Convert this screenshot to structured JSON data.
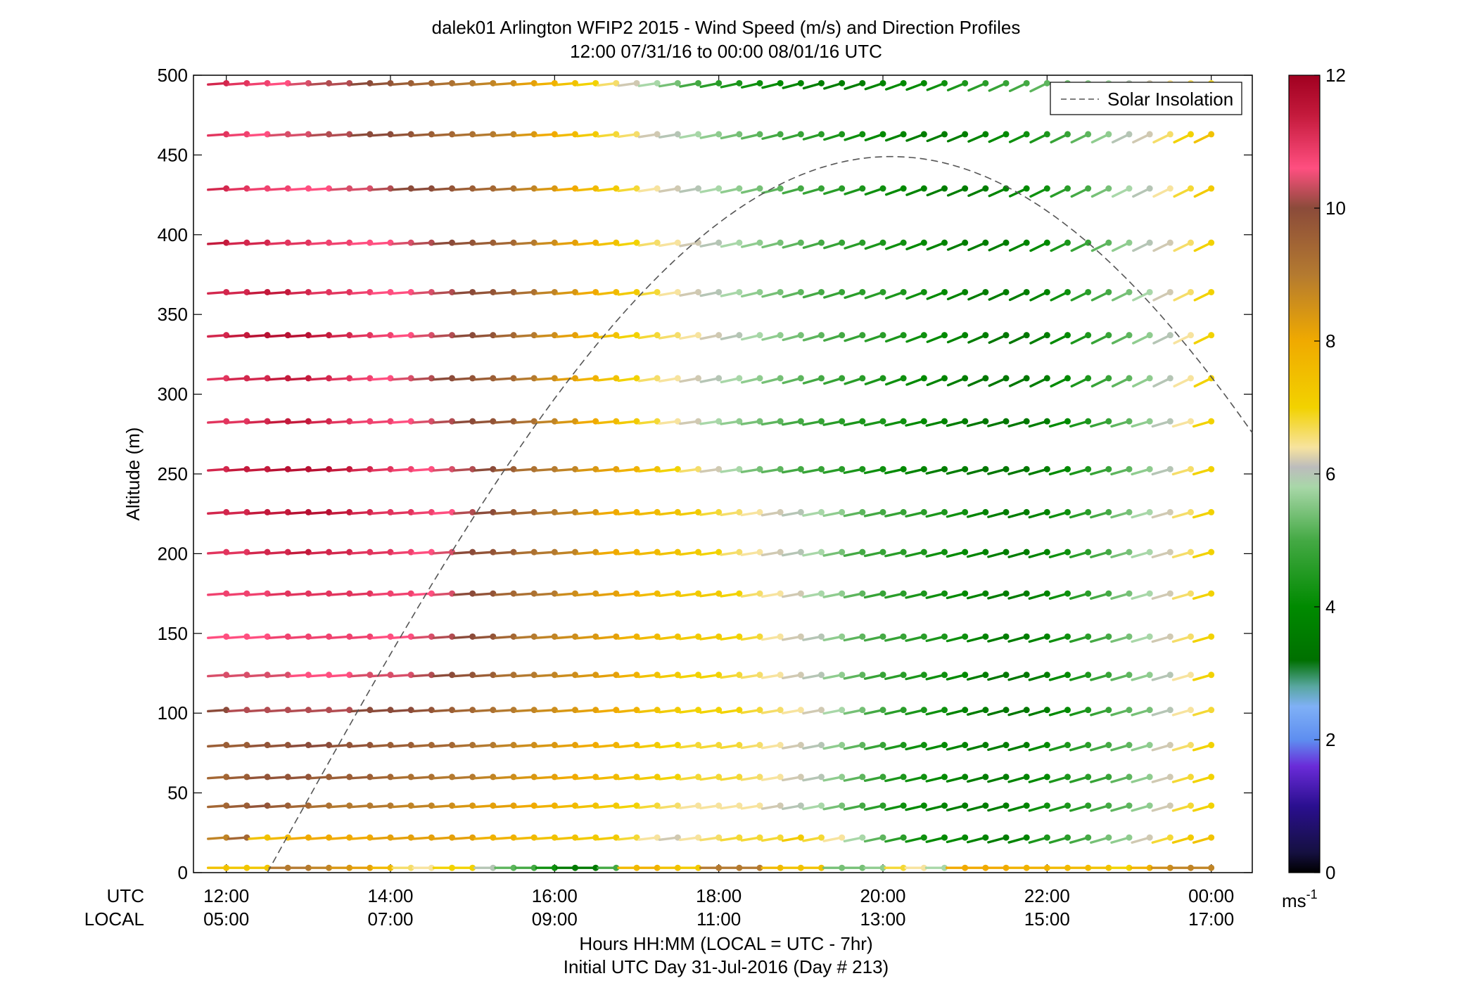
{
  "chart_data": {
    "type": "wind-barb-profile",
    "title": "dalek01 Arlington WFIP2 2015 - Wind Speed (m/s) and Direction Profiles",
    "subtitle": "12:00 07/31/16 to 00:00 08/01/16  UTC",
    "ylabel": "Altitude (m)",
    "xlabel": "Hours HH:MM  (LOCAL = UTC - 7hr)",
    "xlabel2": "Initial UTC Day 31-Jul-2016 (Day # 213)",
    "row_labels": {
      "utc": "UTC",
      "local": "LOCAL"
    },
    "xlim_hours": [
      11.6,
      24.5
    ],
    "ylim": [
      0,
      500
    ],
    "x_ticks": [
      {
        "hour": 12,
        "utc": "12:00",
        "local": "05:00"
      },
      {
        "hour": 14,
        "utc": "14:00",
        "local": "07:00"
      },
      {
        "hour": 16,
        "utc": "16:00",
        "local": "09:00"
      },
      {
        "hour": 18,
        "utc": "18:00",
        "local": "11:00"
      },
      {
        "hour": 20,
        "utc": "20:00",
        "local": "13:00"
      },
      {
        "hour": 22,
        "utc": "22:00",
        "local": "15:00"
      },
      {
        "hour": 24,
        "utc": "00:00",
        "local": "17:00"
      }
    ],
    "y_ticks": [
      0,
      50,
      100,
      150,
      200,
      250,
      300,
      350,
      400,
      450,
      500
    ],
    "altitudes": [
      3,
      22,
      42,
      60,
      80,
      102,
      124,
      148,
      175,
      201,
      226,
      253,
      283,
      310,
      337,
      364,
      395,
      429,
      463,
      495
    ],
    "time_start_hour": 12,
    "time_step_hours": 0.25,
    "speed_profiles": [
      [
        7.4,
        7.3,
        7.3,
        9,
        9,
        8.8,
        8.4,
        8.2,
        7.6,
        6.6,
        6.4,
        7,
        7,
        6,
        5.2,
        5,
        4.2,
        3.5,
        3.5,
        5,
        7.6,
        7.8,
        7.4,
        7.2,
        9,
        9,
        9,
        7.6,
        7.4,
        7.4,
        5.4,
        5.4,
        5.6,
        6.8,
        6.4,
        5.8,
        8,
        8,
        8,
        7.8,
        7.8,
        7.6,
        7.6,
        7.4,
        7,
        7.8,
        8.6,
        8.8,
        8.8
      ],
      [
        8.8,
        9.4,
        7.4,
        7.6,
        8,
        8,
        8,
        8,
        8.2,
        8.2,
        8.2,
        8.2,
        8.2,
        7.8,
        7.8,
        7.6,
        7.4,
        7.4,
        7.2,
        7.2,
        6.8,
        6.4,
        6.2,
        6.4,
        6.6,
        6.8,
        6.8,
        6.8,
        7.2,
        6.8,
        6.4,
        5.8,
        5.2,
        4.6,
        4.2,
        4,
        4,
        3.8,
        3.6,
        3.8,
        4.4,
        4.6,
        5,
        5.4,
        5.6,
        6.2,
        6.8,
        7.2,
        7.4
      ],
      [
        9.4,
        9.6,
        9.8,
        9.6,
        9.4,
        9.2,
        9,
        9,
        9,
        8.8,
        8.8,
        8.6,
        8.4,
        8.2,
        8.2,
        8,
        7.8,
        7.6,
        7.4,
        7.2,
        7,
        6.8,
        6.6,
        6.4,
        6.4,
        6.4,
        6.4,
        6.2,
        6,
        5.8,
        5.4,
        5,
        4.6,
        4.2,
        4,
        3.8,
        3.6,
        3.6,
        3.6,
        3.8,
        4.2,
        4.4,
        4.6,
        5,
        5.2,
        5.6,
        6.2,
        6.8,
        7
      ],
      [
        9.4,
        9.6,
        9.8,
        9.8,
        9.8,
        9.6,
        9.6,
        9.6,
        9.4,
        9.2,
        9.2,
        9,
        9,
        8.8,
        8.6,
        8.4,
        8.2,
        8,
        7.8,
        7.6,
        7.4,
        7.2,
        7,
        6.8,
        6.8,
        6.8,
        6.6,
        6.4,
        6.2,
        6,
        5.6,
        5.2,
        4.8,
        4.4,
        4.2,
        4,
        3.8,
        3.6,
        3.6,
        3.8,
        4,
        4.4,
        4.6,
        4.8,
        5.2,
        5.6,
        6.2,
        6.8,
        7
      ],
      [
        9.6,
        9.6,
        9.8,
        9.8,
        10,
        10,
        9.8,
        9.8,
        9.6,
        9.6,
        9.4,
        9.4,
        9.2,
        9,
        8.8,
        8.6,
        8.4,
        8.2,
        8,
        7.8,
        7.6,
        7.2,
        7,
        6.8,
        6.8,
        6.8,
        6.6,
        6.4,
        6.2,
        6,
        5.6,
        5.2,
        4.8,
        4.4,
        4.2,
        4,
        3.8,
        3.6,
        3.6,
        3.6,
        4,
        4.4,
        4.6,
        5,
        5.2,
        5.6,
        6.2,
        6.6,
        7
      ],
      [
        10,
        10.2,
        10.2,
        10.2,
        10.2,
        10.2,
        10.2,
        10,
        10,
        10,
        9.8,
        9.6,
        9.4,
        9.2,
        9,
        8.8,
        8.6,
        8.4,
        8.2,
        8,
        7.8,
        7.4,
        7.2,
        7,
        7,
        7,
        6.8,
        6.6,
        6.4,
        6.2,
        5.8,
        5.4,
        5,
        4.6,
        4.4,
        4.2,
        3.8,
        3.6,
        3.4,
        3.4,
        3.6,
        4,
        4.4,
        4.8,
        5.2,
        5.4,
        6,
        6.4,
        6.8
      ],
      [
        10.4,
        10.4,
        10.4,
        10.4,
        10.6,
        10.6,
        10.6,
        10.4,
        10.4,
        10.4,
        10.2,
        10,
        9.8,
        9.6,
        9.2,
        9,
        8.8,
        8.6,
        8.4,
        8.2,
        7.8,
        7.4,
        7.2,
        7,
        7,
        6.8,
        6.6,
        6.4,
        6.2,
        6,
        5.6,
        5.2,
        4.8,
        4.6,
        4.4,
        4.2,
        4,
        3.6,
        3.4,
        3.4,
        3.6,
        4,
        4.4,
        4.8,
        5.2,
        5.6,
        6,
        6.4,
        7
      ],
      [
        10.6,
        10.6,
        10.6,
        10.8,
        10.8,
        10.8,
        10.8,
        10.8,
        10.6,
        10.6,
        10.4,
        10.2,
        10,
        9.8,
        9.4,
        9,
        8.8,
        8.6,
        8.4,
        8.2,
        7.8,
        7.6,
        7.4,
        7.2,
        7.2,
        7,
        6.8,
        6.4,
        6.2,
        6,
        5.6,
        5.2,
        5,
        4.8,
        4.6,
        4.4,
        4.2,
        3.8,
        3.6,
        3.6,
        3.8,
        4.2,
        4.6,
        5,
        5.4,
        5.8,
        6.2,
        6.6,
        7
      ],
      [
        10.8,
        10.8,
        10.8,
        11,
        11,
        11,
        11,
        11,
        10.8,
        10.8,
        10.6,
        10.4,
        10,
        9.8,
        9.4,
        9.2,
        9,
        8.6,
        8.4,
        8.2,
        8,
        7.6,
        7.4,
        7.2,
        7.2,
        7,
        6.6,
        6.4,
        6.2,
        5.8,
        5.6,
        5.2,
        4.8,
        4.6,
        4.4,
        4.2,
        4,
        3.8,
        3.6,
        3.6,
        3.8,
        4.2,
        4.6,
        5,
        5.4,
        5.8,
        6.2,
        6.6,
        7
      ],
      [
        11,
        11,
        11.2,
        11.2,
        11.4,
        11.2,
        11.2,
        11,
        11,
        10.8,
        10.6,
        10.4,
        10,
        9.8,
        9.6,
        9.2,
        9,
        8.8,
        8.4,
        8,
        7.8,
        7.6,
        7.4,
        7.2,
        7,
        6.6,
        6.4,
        6.2,
        6,
        5.8,
        5.4,
        5,
        4.8,
        4.6,
        4.4,
        4.2,
        4,
        3.8,
        3.6,
        3.6,
        3.8,
        4.2,
        4.6,
        5,
        5.4,
        5.8,
        6.2,
        6.6,
        7
      ],
      [
        11.2,
        11.2,
        11.4,
        11.4,
        11.6,
        11.6,
        11.4,
        11.2,
        11,
        11,
        10.8,
        10.6,
        10.2,
        10,
        9.6,
        9.4,
        9,
        8.8,
        8.4,
        8,
        7.8,
        7.6,
        7.4,
        7.2,
        6.8,
        6.6,
        6.4,
        6.2,
        6,
        5.8,
        5.6,
        5.2,
        5,
        4.8,
        4.6,
        4.4,
        4.2,
        3.8,
        3.6,
        3.6,
        3.8,
        4.2,
        4.6,
        5,
        5.4,
        5.8,
        6.2,
        6.6,
        7
      ],
      [
        11.2,
        11.4,
        11.4,
        11.6,
        11.6,
        11.6,
        11.4,
        11.2,
        11,
        10.8,
        10.6,
        10.4,
        10.2,
        10,
        9.6,
        9.2,
        9,
        8.8,
        8.4,
        8.2,
        7.8,
        7.4,
        7,
        6.6,
        6.2,
        5.8,
        5.4,
        5.2,
        5,
        4.8,
        4.6,
        4.4,
        4.2,
        4,
        3.8,
        3.6,
        3.6,
        3.4,
        3.4,
        3.4,
        3.6,
        4,
        4.4,
        4.8,
        5.2,
        5.6,
        6,
        6.6,
        7
      ],
      [
        11,
        11,
        11.2,
        11.4,
        11.4,
        11.2,
        11,
        10.8,
        10.8,
        10.6,
        10.4,
        10.2,
        10,
        9.8,
        9.6,
        9.2,
        8.8,
        8.4,
        8,
        7.6,
        7.2,
        6.8,
        6.4,
        6.2,
        5.8,
        5.6,
        5.4,
        5.2,
        5,
        4.8,
        4.6,
        4.4,
        4.4,
        4.2,
        4,
        3.8,
        3.6,
        3.4,
        3.4,
        3.4,
        3.6,
        4,
        4.4,
        4.8,
        5.2,
        5.6,
        6,
        6.4,
        7
      ],
      [
        11,
        11.2,
        11.2,
        11.4,
        11.4,
        11.2,
        11,
        10.8,
        10.6,
        10.4,
        10.2,
        10,
        9.8,
        9.6,
        9.4,
        9,
        8.6,
        8.2,
        7.8,
        7.4,
        7,
        6.6,
        6.4,
        6.2,
        6,
        5.8,
        5.6,
        5.4,
        5.2,
        5,
        4.8,
        4.6,
        4.4,
        4.2,
        4,
        3.8,
        3.6,
        3.4,
        3.4,
        3.4,
        3.6,
        4,
        4.4,
        4.8,
        5.2,
        5.6,
        6,
        6.4,
        7
      ],
      [
        11.2,
        11.4,
        11.6,
        11.6,
        11.6,
        11.4,
        11.2,
        11,
        10.8,
        10.6,
        10.4,
        10.2,
        10,
        9.8,
        9.4,
        9,
        8.6,
        8.2,
        7.8,
        7.4,
        7,
        6.8,
        6.6,
        6.4,
        6.2,
        6,
        5.8,
        5.6,
        5.4,
        5.2,
        5,
        4.8,
        4.6,
        4.4,
        4.2,
        4,
        3.8,
        3.6,
        3.4,
        3.4,
        3.6,
        4,
        4.4,
        4.8,
        5.2,
        5.6,
        6,
        6.4,
        7
      ],
      [
        11.2,
        11.2,
        11.4,
        11.4,
        11.2,
        11,
        11,
        10.8,
        10.6,
        10.6,
        10.4,
        10.2,
        10,
        9.8,
        9.6,
        9.2,
        8.8,
        8.4,
        8,
        7.6,
        7.2,
        6.8,
        6.4,
        6.2,
        6,
        5.8,
        5.6,
        5.4,
        5.2,
        5,
        4.8,
        4.6,
        4.6,
        4.4,
        4.2,
        4,
        3.8,
        3.6,
        3.6,
        3.6,
        3.8,
        4.2,
        4.6,
        5,
        5.4,
        5.8,
        6.2,
        6.6,
        7
      ],
      [
        11.4,
        11.2,
        11.2,
        11,
        11,
        10.8,
        10.8,
        10.6,
        10.6,
        10.4,
        10.2,
        10,
        9.8,
        9.6,
        9.4,
        9,
        8.6,
        8.2,
        7.8,
        7.4,
        7,
        6.6,
        6.4,
        6.2,
        6,
        5.8,
        5.6,
        5.4,
        5.2,
        5,
        4.8,
        4.6,
        4.4,
        4.2,
        4,
        3.8,
        3.6,
        3.6,
        3.6,
        3.8,
        4,
        4.4,
        4.8,
        5.2,
        5.6,
        6,
        6.2,
        6.6,
        7
      ],
      [
        11.2,
        11,
        10.8,
        10.8,
        10.6,
        10.6,
        10.4,
        10.4,
        10.2,
        10,
        10,
        9.8,
        9.6,
        9.4,
        9.2,
        8.8,
        8.4,
        8,
        7.6,
        7.2,
        6.8,
        6.4,
        6.2,
        6,
        5.8,
        5.6,
        5.4,
        5.2,
        5,
        4.8,
        4.6,
        4.4,
        4.2,
        4,
        3.8,
        3.6,
        3.6,
        3.6,
        3.8,
        4,
        4.2,
        4.6,
        5,
        5.4,
        5.8,
        6,
        6.4,
        6.8,
        7.2
      ],
      [
        11,
        10.8,
        10.6,
        10.4,
        10.4,
        10.2,
        10.2,
        10,
        10,
        9.8,
        9.6,
        9.4,
        9.2,
        9,
        8.8,
        8.4,
        8,
        7.6,
        7.2,
        6.8,
        6.6,
        6.2,
        6,
        5.8,
        5.6,
        5.4,
        5.2,
        5,
        4.8,
        4.6,
        4.4,
        4.2,
        4,
        3.8,
        3.6,
        3.6,
        3.6,
        3.8,
        4,
        4.2,
        4.4,
        4.8,
        5.2,
        5.6,
        6,
        6.2,
        6.6,
        7,
        7.4
      ],
      [
        11.2,
        11,
        10.8,
        10.6,
        10.4,
        10.2,
        10.2,
        10,
        9.8,
        9.6,
        9.4,
        9.2,
        9,
        8.8,
        8.6,
        8.2,
        7.8,
        7.4,
        7,
        6.6,
        6.2,
        5.8,
        5.4,
        5,
        4.6,
        4.4,
        4.2,
        4,
        3.8,
        3.6,
        3.6,
        3.6,
        3.8,
        4,
        4,
        4.2,
        4.4,
        4.6,
        4.8,
        5,
        5.2,
        5.4,
        5.6,
        5.8,
        6,
        6.2,
        6.4,
        6.6,
        6.8
      ]
    ],
    "direction": "barbs point toward lower-left at low altitudes in the morning and rotate to steeper south-westerly tilt during afternoon",
    "solar_curve": {
      "name": "Solar Insolation",
      "style": "dashed",
      "rise_hour": 12.5,
      "peak_hour": 20.1,
      "peak_altitude": 449,
      "end_hour": 24.5,
      "end_altitude": 260
    },
    "legend": {
      "position": "top-right",
      "entries": [
        "Solar Insolation"
      ]
    },
    "colorbar": {
      "min": 0,
      "max": 12,
      "ticks": [
        0,
        2,
        4,
        6,
        8,
        10,
        12
      ],
      "unit_label": "ms",
      "unit_exponent": "-1",
      "stops": [
        {
          "v": 0,
          "c": "#000000"
        },
        {
          "v": 0.3,
          "c": "#151040"
        },
        {
          "v": 1,
          "c": "#2a0f8f"
        },
        {
          "v": 1.6,
          "c": "#6a2bd8"
        },
        {
          "v": 2,
          "c": "#5e8ef0"
        },
        {
          "v": 2.5,
          "c": "#7fb0f6"
        },
        {
          "v": 2.8,
          "c": "#59a7a1"
        },
        {
          "v": 3.2,
          "c": "#007000"
        },
        {
          "v": 4,
          "c": "#008a00"
        },
        {
          "v": 5,
          "c": "#44a944"
        },
        {
          "v": 5.8,
          "c": "#a8d7a8"
        },
        {
          "v": 6.1,
          "c": "#bcbcbc"
        },
        {
          "v": 6.4,
          "c": "#f7e39e"
        },
        {
          "v": 7,
          "c": "#f2d200"
        },
        {
          "v": 8,
          "c": "#f0aa00"
        },
        {
          "v": 9,
          "c": "#b47a30"
        },
        {
          "v": 10,
          "c": "#8b4b3a"
        },
        {
          "v": 10.6,
          "c": "#ff4f80"
        },
        {
          "v": 11.4,
          "c": "#c41a3c"
        },
        {
          "v": 12,
          "c": "#a00020"
        }
      ]
    }
  }
}
